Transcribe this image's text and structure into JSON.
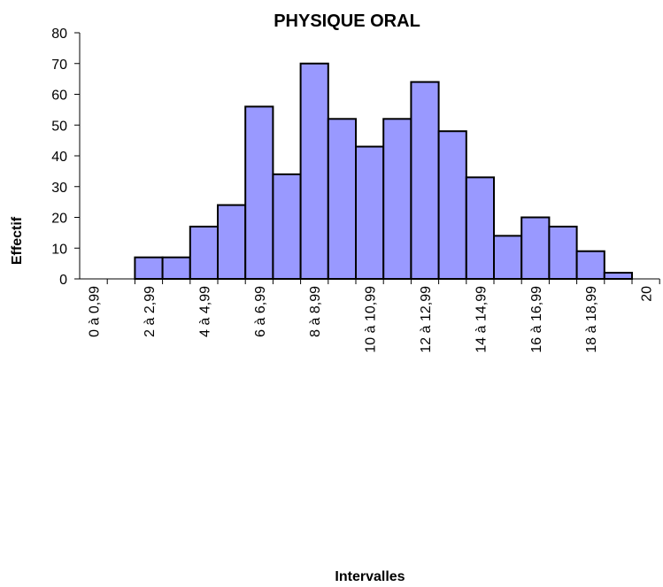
{
  "chart_data": {
    "type": "bar",
    "title": "PHYSIQUE ORAL",
    "x_label": "Intervalles",
    "y_label": "Effectif",
    "categories": [
      "0 à 0,99",
      null,
      "2 à 2,99",
      null,
      "4 à 4,99",
      null,
      "6 à 6,99",
      null,
      "8 à 8,99",
      null,
      "10 à 10,99",
      null,
      "12 à 12,99",
      null,
      "14 à 14,99",
      null,
      "16 à 16,99",
      null,
      "18 à 18,99",
      null,
      "20"
    ],
    "values": [
      0,
      0,
      7,
      7,
      17,
      24,
      56,
      34,
      70,
      52,
      43,
      52,
      64,
      48,
      33,
      14,
      20,
      17,
      9,
      2,
      0
    ],
    "color": "#9999ff",
    "ylim": [
      0,
      80
    ],
    "yticks": [
      0,
      10,
      20,
      30,
      40,
      50,
      60,
      70,
      80
    ],
    "grid": false
  }
}
